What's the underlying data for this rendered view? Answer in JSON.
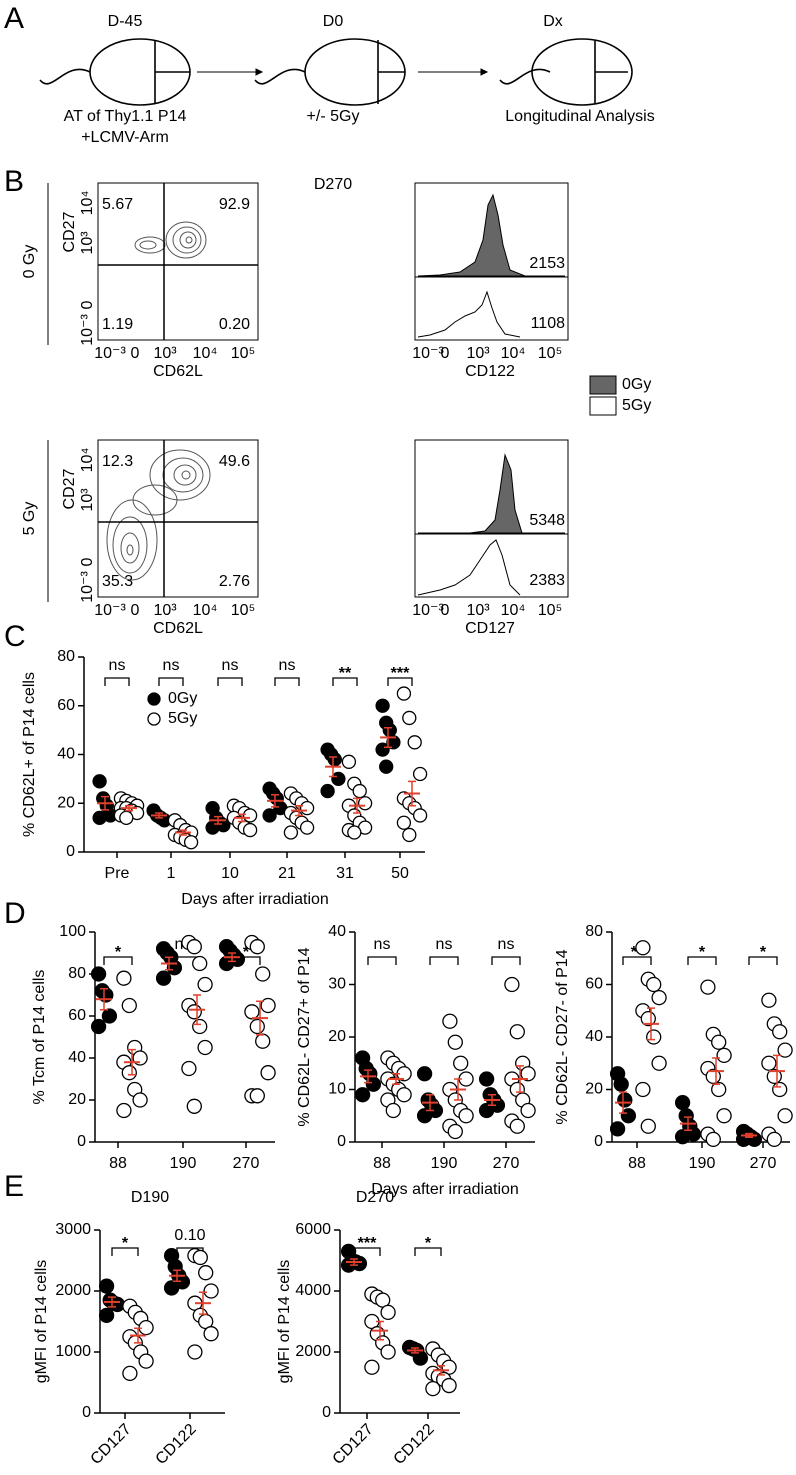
{
  "panel_labels": [
    "A",
    "B",
    "C",
    "D",
    "E"
  ],
  "schematic": {
    "steps": [
      {
        "day": "D-45",
        "lines": [
          "AT of Thy1.1 P14",
          "+LCMV-Arm"
        ]
      },
      {
        "day": "D0",
        "lines": [
          "+/- 5Gy"
        ]
      },
      {
        "day": "Dx",
        "lines": [
          "Longitudinal Analysis"
        ]
      }
    ]
  },
  "flow": {
    "title": "D270",
    "xticks": [
      "10⁻³",
      "0",
      "10³",
      "10⁴",
      "10⁵"
    ],
    "yticks": [
      "10⁴",
      "10³",
      "0",
      "10⁻³"
    ],
    "legend": [
      "0Gy",
      "5Gy"
    ],
    "rows": [
      {
        "condition": "0 Gy",
        "y_label": "CD27",
        "x_label": "CD62L",
        "quadrants": [
          "5.67",
          "92.9",
          "1.19",
          "0.20"
        ],
        "hist_label": "CD122",
        "hist_values": [
          "2153",
          "1108"
        ]
      },
      {
        "condition": "5 Gy",
        "y_label": "CD27",
        "x_label": "CD62L",
        "quadrants": [
          "12.3",
          "49.6",
          "35.3",
          "2.76"
        ],
        "hist_label": "CD127",
        "hist_values": [
          "5348",
          "2383"
        ]
      }
    ]
  },
  "chart_data": [
    {
      "type": "dotplot",
      "ylabel": "% CD62L+ of P14 cells",
      "xlabel": "Days after irradiation",
      "categories": [
        "Pre",
        "1",
        "10",
        "21",
        "31",
        "50"
      ],
      "ylim": [
        0,
        80
      ],
      "yticks": [
        0,
        20,
        40,
        60,
        80
      ],
      "annotations": [
        "ns",
        "ns",
        "ns",
        "ns",
        "**",
        "***"
      ],
      "error_color": "#e0402c",
      "legend": "upper left",
      "series": [
        {
          "name": "0Gy",
          "color": "#000000",
          "filled": true,
          "points": [
            [
              29,
              22,
              19,
              15,
              14
            ],
            [
              17,
              15,
              14,
              13
            ],
            [
              18,
              14,
              12,
              11,
              10
            ],
            [
              26,
              24,
              22,
              18,
              15
            ],
            [
              42,
              40,
              38,
              30,
              25
            ],
            [
              60,
              53,
              50,
              45,
              42,
              35
            ]
          ],
          "mean": [
            20,
            15,
            13,
            21,
            35,
            47
          ],
          "sem": [
            2.7,
            1,
            1.5,
            2.5,
            4,
            4
          ]
        },
        {
          "name": "5Gy",
          "color": "#000000",
          "filled": false,
          "points": [
            [
              22,
              21,
              20,
              19,
              18,
              18,
              17,
              16,
              15,
              14
            ],
            [
              13,
              11,
              9,
              8,
              7,
              6,
              5,
              4
            ],
            [
              19,
              18,
              16,
              15,
              14,
              12,
              10,
              9
            ],
            [
              24,
              22,
              20,
              18,
              16,
              14,
              12,
              10,
              8
            ],
            [
              37,
              28,
              25,
              20,
              19,
              15,
              12,
              10,
              9,
              8
            ],
            [
              65,
              55,
              45,
              32,
              22,
              20,
              18,
              15,
              12,
              7
            ]
          ],
          "mean": [
            18,
            8,
            14,
            17,
            19,
            24
          ],
          "sem": [
            1,
            1,
            1.5,
            2,
            3,
            5
          ]
        }
      ]
    },
    {
      "type": "dotplot",
      "ylabel": "% Tcm of P14 cells",
      "categories": [
        "88",
        "190",
        "270"
      ],
      "ylim": [
        0,
        100
      ],
      "yticks": [
        0,
        20,
        40,
        60,
        80,
        100
      ],
      "annotations": [
        "*",
        "ns",
        "*"
      ],
      "error_color": "#e0402c",
      "series": [
        {
          "color": "#000000",
          "filled": true,
          "points": [
            [
              80,
              72,
              70,
              60,
              55
            ],
            [
              92,
              90,
              88,
              83,
              78
            ],
            [
              93,
              91,
              89,
              87,
              85
            ]
          ],
          "mean": [
            68,
            85,
            88
          ],
          "sem": [
            5,
            3,
            2
          ]
        },
        {
          "color": "#000000",
          "filled": false,
          "points": [
            [
              78,
              65,
              45,
              40,
              38,
              33,
              25,
              20,
              15
            ],
            [
              95,
              93,
              85,
              75,
              65,
              62,
              55,
              45,
              35,
              17
            ],
            [
              95,
              93,
              80,
              65,
              62,
              55,
              48,
              33,
              22,
              22
            ]
          ],
          "mean": [
            38,
            63,
            59
          ],
          "sem": [
            6,
            7,
            8
          ]
        }
      ]
    },
    {
      "type": "dotplot",
      "ylabel": "% CD62L- CD27+ of P14",
      "xlabel": "Days after irradiation",
      "categories": [
        "88",
        "190",
        "270"
      ],
      "ylim": [
        0,
        40
      ],
      "yticks": [
        0,
        10,
        20,
        30,
        40
      ],
      "annotations": [
        "ns",
        "ns",
        "ns"
      ],
      "error_color": "#e0402c",
      "series": [
        {
          "color": "#000000",
          "filled": true,
          "points": [
            [
              16,
              14,
              13,
              11,
              9
            ],
            [
              13,
              8,
              7,
              6,
              5
            ],
            [
              12,
              9,
              8,
              7,
              6
            ]
          ],
          "mean": [
            12.5,
            7.5,
            8
          ],
          "sem": [
            1.2,
            1.5,
            1
          ]
        },
        {
          "color": "#000000",
          "filled": false,
          "points": [
            [
              16,
              15,
              14,
              13,
              12,
              11,
              10,
              9,
              8,
              6
            ],
            [
              23,
              19,
              15,
              12,
              10,
              8,
              6,
              5,
              3,
              2
            ],
            [
              30,
              21,
              15,
              13,
              12,
              10,
              8,
              6,
              4,
              3
            ]
          ],
          "mean": [
            12,
            10,
            12
          ],
          "sem": [
            1,
            2,
            2.5
          ]
        }
      ]
    },
    {
      "type": "dotplot",
      "ylabel": "% CD62L- CD27- of P14",
      "categories": [
        "88",
        "190",
        "270"
      ],
      "ylim": [
        0,
        80
      ],
      "yticks": [
        0,
        20,
        40,
        60,
        80
      ],
      "annotations": [
        "**",
        "*",
        "*"
      ],
      "error_color": "#e0402c",
      "series": [
        {
          "color": "#000000",
          "filled": true,
          "points": [
            [
              26,
              22,
              16,
              10,
              5
            ],
            [
              15,
              10,
              6,
              3,
              2
            ],
            [
              4,
              3,
              2,
              1,
              1
            ]
          ],
          "mean": [
            15,
            7,
            2.5
          ],
          "sem": [
            4,
            2.5,
            0.7
          ]
        },
        {
          "color": "#000000",
          "filled": false,
          "points": [
            [
              74,
              62,
              60,
              55,
              50,
              47,
              40,
              30,
              20,
              6
            ],
            [
              59,
              41,
              38,
              33,
              28,
              25,
              20,
              10,
              3,
              1
            ],
            [
              54,
              45,
              42,
              35,
              30,
              25,
              20,
              10,
              3,
              1
            ]
          ],
          "mean": [
            45,
            27,
            27
          ],
          "sem": [
            6,
            5,
            6
          ]
        }
      ]
    },
    {
      "type": "dotplot",
      "title": "D190",
      "ylabel": "gMFI of P14 cells",
      "categories": [
        "CD127",
        "CD122"
      ],
      "ylim": [
        0,
        3000
      ],
      "yticks": [
        0,
        1000,
        2000,
        3000
      ],
      "annotations": [
        "*",
        "0.10"
      ],
      "error_color": "#e0402c",
      "series": [
        {
          "color": "#000000",
          "filled": true,
          "points": [
            [
              2080,
              1850,
              1800,
              1780,
              1600
            ],
            [
              2580,
              2400,
              2250,
              2150,
              2050
            ]
          ],
          "mean": [
            1820,
            2250
          ],
          "sem": [
            80,
            90
          ]
        },
        {
          "color": "#000000",
          "filled": false,
          "points": [
            [
              1750,
              1650,
              1550,
              1400,
              1250,
              1150,
              1000,
              850,
              650
            ],
            [
              2580,
              2550,
              2300,
              2000,
              1800,
              1600,
              1500,
              1300,
              1000
            ]
          ],
          "mean": [
            1270,
            1800
          ],
          "sem": [
            120,
            180
          ]
        }
      ]
    },
    {
      "type": "dotplot",
      "title": "D270",
      "ylabel": "gMFI of P14 cells",
      "categories": [
        "CD127",
        "CD122"
      ],
      "ylim": [
        0,
        6000
      ],
      "yticks": [
        0,
        2000,
        4000,
        6000
      ],
      "annotations": [
        "***",
        "*"
      ],
      "error_color": "#e0402c",
      "series": [
        {
          "color": "#000000",
          "filled": true,
          "points": [
            [
              5300,
              5000,
              4950,
              4900,
              4850
            ],
            [
              2150,
              2100,
              2050,
              1800
            ]
          ],
          "mean": [
            4950,
            2050
          ],
          "sem": [
            100,
            80
          ]
        },
        {
          "color": "#000000",
          "filled": false,
          "points": [
            [
              3900,
              3800,
              3700,
              3300,
              3000,
              2600,
              2300,
              2000,
              1500
            ],
            [
              2100,
              1900,
              1700,
              1500,
              1300,
              1200,
              1100,
              900,
              800
            ]
          ],
          "mean": [
            2700,
            1400
          ],
          "sem": [
            300,
            150
          ]
        }
      ]
    }
  ]
}
